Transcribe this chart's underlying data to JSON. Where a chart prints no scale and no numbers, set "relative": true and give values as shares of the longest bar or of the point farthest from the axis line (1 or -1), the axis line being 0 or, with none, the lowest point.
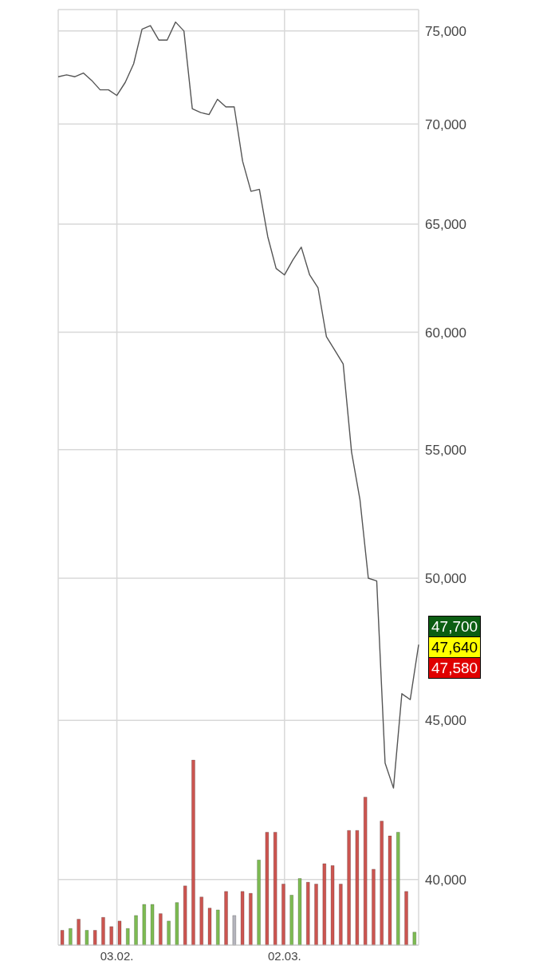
{
  "chart_data": [
    {
      "type": "line",
      "categories": [
        null,
        null,
        null,
        null,
        null,
        null,
        null,
        "03.02.",
        null,
        null,
        null,
        null,
        null,
        null,
        null,
        null,
        null,
        null,
        null,
        null,
        null,
        null,
        null,
        null,
        null,
        null,
        null,
        "02.03.",
        null,
        null,
        null,
        null,
        null,
        null,
        null,
        null,
        null,
        null,
        null,
        null,
        null,
        null,
        null,
        null
      ],
      "values": [
        72500,
        72600,
        72500,
        72700,
        72300,
        71800,
        71800,
        71500,
        72200,
        73200,
        75100,
        75300,
        74500,
        74500,
        75500,
        75000,
        70800,
        70600,
        70500,
        71300,
        70900,
        70900,
        68100,
        66600,
        66700,
        64400,
        62900,
        62600,
        63300,
        63900,
        62600,
        62000,
        59800,
        59200,
        58600,
        54900,
        53000,
        50000,
        49900,
        43600,
        42800,
        45900,
        45700,
        47600
      ],
      "color": "#555555",
      "log": "y",
      "ylim": [
        38100,
        76200
      ],
      "yticks": [
        {
          "value": 40000,
          "label": "40,000"
        },
        {
          "value": 45000,
          "label": "45,000"
        },
        {
          "value": 50000,
          "label": "50,000"
        },
        {
          "value": 55000,
          "label": "55,000"
        },
        {
          "value": 60000,
          "label": "60,000"
        },
        {
          "value": 65000,
          "label": "65,000"
        },
        {
          "value": 70000,
          "label": "70,000"
        },
        {
          "value": 75000,
          "label": "75,000"
        }
      ],
      "grid": true,
      "annotations": [
        "47,700",
        "47,640",
        "47,580"
      ]
    },
    {
      "type": "bar",
      "relative": true,
      "categories": [
        null,
        null,
        null,
        null,
        null,
        null,
        null,
        null,
        null,
        null,
        null,
        null,
        null,
        null,
        null,
        null,
        null,
        null,
        null,
        null,
        null,
        null,
        null,
        null,
        null,
        null,
        null,
        null,
        null,
        null,
        null,
        null,
        null,
        null,
        null,
        null,
        null,
        null,
        null,
        null,
        null,
        null,
        null,
        null
      ],
      "values": [
        0.08,
        0.09,
        0.14,
        0.08,
        0.08,
        0.15,
        0.1,
        0.13,
        0.09,
        0.16,
        0.22,
        0.22,
        0.17,
        0.13,
        0.23,
        0.32,
        1,
        0.26,
        0.2,
        0.19,
        0.29,
        0.16,
        0.29,
        0.28,
        0.46,
        0.61,
        0.61,
        0.33,
        0.27,
        0.36,
        0.34,
        0.33,
        0.44,
        0.43,
        0.33,
        0.62,
        0.62,
        0.8,
        0.41,
        0.67,
        0.59,
        0.61,
        0.29,
        0.07
      ],
      "colors": [
        "#cc5550",
        "#7dbb52",
        "#cc5550",
        "#7dbb52",
        "#cc5550",
        "#cc5550",
        "#cc5550",
        "#cc5550",
        "#7dbb52",
        "#7dbb52",
        "#7dbb52",
        "#7dbb52",
        "#cc5550",
        "#7dbb52",
        "#7dbb52",
        "#cc5550",
        "#cc5550",
        "#cc5550",
        "#cc5550",
        "#7dbb52",
        "#cc5550",
        "#b4b4bc",
        "#cc5550",
        "#cc5550",
        "#7dbb52",
        "#cc5550",
        "#cc5550",
        "#cc5550",
        "#7dbb52",
        "#7dbb52",
        "#cc5550",
        "#cc5550",
        "#cc5550",
        "#cc5550",
        "#cc5550",
        "#cc5550",
        "#cc5550",
        "#cc5550",
        "#cc5550",
        "#cc5550",
        "#cc5550",
        "#7dbb52",
        "#cc5550",
        "#7dbb52"
      ]
    }
  ]
}
